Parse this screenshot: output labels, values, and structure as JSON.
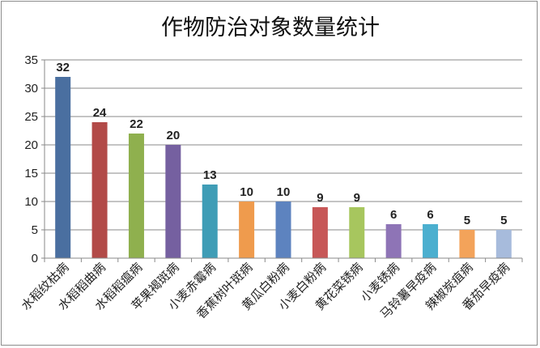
{
  "chart_data": {
    "type": "bar",
    "title": "作物防治对象数量统计",
    "xlabel": "",
    "ylabel": "",
    "ylim": [
      0,
      35
    ],
    "yticks": [
      0,
      5,
      10,
      15,
      20,
      25,
      30,
      35
    ],
    "grid": true,
    "legend": "none",
    "categories": [
      "水稻纹枯病",
      "水稻稻曲病",
      "水稻稻瘟病",
      "苹果褐斑病",
      "小麦赤霉病",
      "香蕉树叶斑病",
      "黄瓜白粉病",
      "小麦白粉病",
      "黄花菜锈病",
      "小麦锈病",
      "马铃薯早疫病",
      "辣椒炭疽病",
      "番茄早疫病"
    ],
    "values": [
      32,
      24,
      22,
      20,
      13,
      10,
      10,
      9,
      9,
      6,
      6,
      5,
      5
    ],
    "colors": [
      "#4a6fa0",
      "#b24a48",
      "#8fb04e",
      "#7560a0",
      "#3f9db6",
      "#ef9b4d",
      "#5d83bf",
      "#c75757",
      "#a7c65e",
      "#8e74b6",
      "#4bafcf",
      "#f3a35a",
      "#a7bbdc"
    ]
  }
}
